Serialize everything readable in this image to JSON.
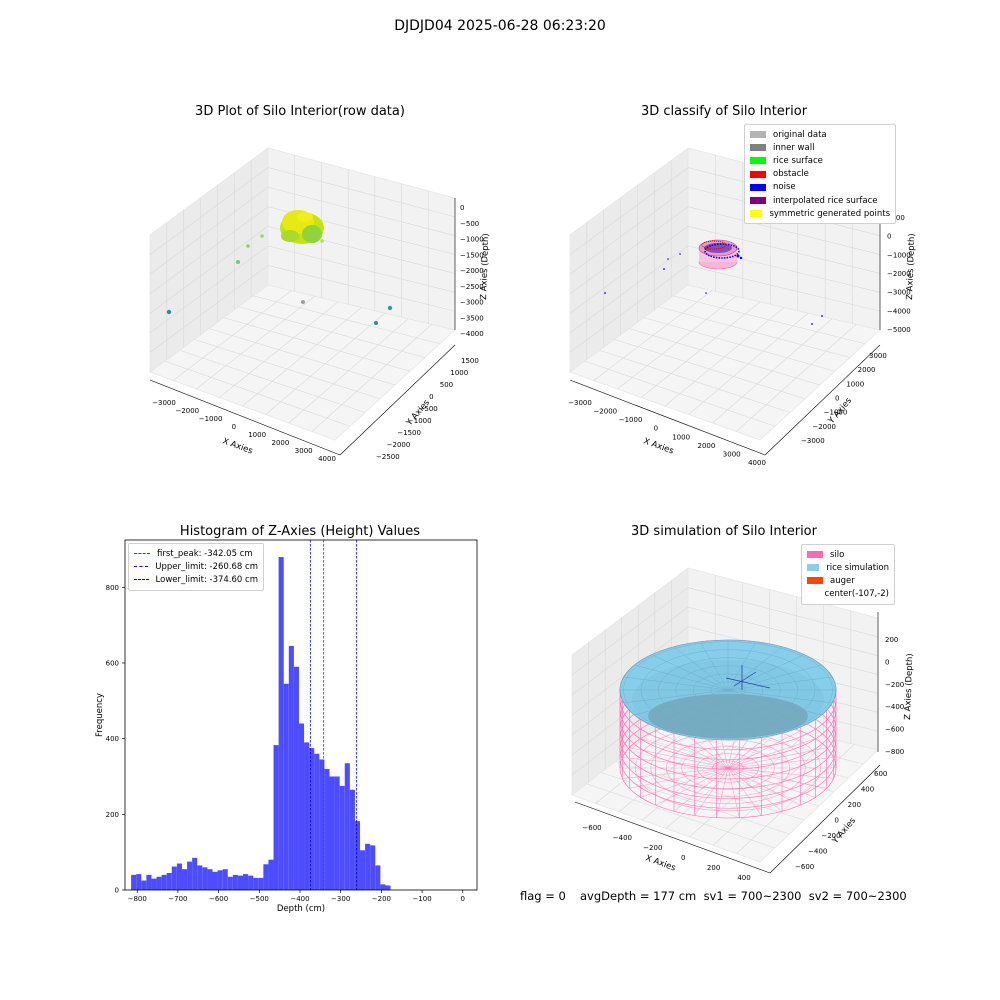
{
  "suptitle": "DJDJD04 2025-06-28 06:23:20",
  "panels": {
    "raw": {
      "title": "3D Plot of Silo Interior(row data)",
      "xlabel": "X Axies",
      "ylabel": "Y Axies",
      "zlabel": "Z Axies (Depth)",
      "xticks": [
        "−3000",
        "−2000",
        "−1000",
        "0",
        "1000",
        "2000",
        "3000",
        "4000"
      ],
      "yticks": [
        "−2500",
        "−2000",
        "−1500",
        "−1000",
        "−500",
        "0",
        "500",
        "1000",
        "1500"
      ],
      "zticks": [
        "0",
        "−500",
        "−1000",
        "−1500",
        "−2000",
        "−2500",
        "−3000",
        "−3500",
        "−4000"
      ]
    },
    "classify": {
      "title": "3D classify of Silo Interior",
      "xlabel": "X Axies",
      "ylabel": "Y Axies",
      "zlabel": "Z Axies (Depth)",
      "xticks": [
        "−3000",
        "−2000",
        "−1000",
        "0",
        "1000",
        "2000",
        "3000",
        "4000"
      ],
      "yticks": [
        "−3000",
        "−2000",
        "−1000",
        "0",
        "1000",
        "2000",
        "3000"
      ],
      "zticks": [
        "1000",
        "0",
        "−1000",
        "−2000",
        "−3000",
        "−4000",
        "−5000"
      ],
      "legend": [
        {
          "label": "original data",
          "color": "#b3b3b3"
        },
        {
          "label": "inner wall",
          "color": "#808080"
        },
        {
          "label": "rice surface",
          "color": "#00ff00"
        },
        {
          "label": "obstacle",
          "color": "#ff0000"
        },
        {
          "label": "noise",
          "color": "#0000ff"
        },
        {
          "label": "interpolated rice surface",
          "color": "#800080"
        },
        {
          "label": "symmetric generated points",
          "color": "#ffff00"
        }
      ]
    },
    "simulation": {
      "title": "3D simulation of Silo Interior",
      "xlabel": "X Axies",
      "ylabel": "Y Axies",
      "zlabel": "Z Axies (Depth)",
      "xticks": [
        "−600",
        "−400",
        "−200",
        "0",
        "200",
        "400"
      ],
      "yticks": [
        "−600",
        "−400",
        "−200",
        "0",
        "200",
        "400",
        "600"
      ],
      "zticks": [
        "200",
        "0",
        "−200",
        "−400",
        "−600",
        "−800"
      ],
      "legend": [
        {
          "label": "silo",
          "color": "#ff69b4"
        },
        {
          "label": "rice simulation",
          "color": "#87ceeb"
        },
        {
          "label": "auger",
          "color": "#ff4500"
        },
        {
          "label": "center(-107,-2)",
          "color": ""
        }
      ]
    }
  },
  "footer": {
    "flag": "flag = 0",
    "avg": "avgDepth = 177 cm  sv1 = 700~2300  sv2 = 700~2300"
  },
  "chart_data": [
    {
      "type": "bar",
      "title": "Histogram of Z-Axies (Height) Values",
      "xlabel": "Depth (cm)",
      "ylabel": "Frequency",
      "xlim": [
        -830,
        35
      ],
      "ylim": [
        0,
        925
      ],
      "bin_width": 12.5,
      "bin_start": -815,
      "values": [
        40,
        42,
        25,
        40,
        30,
        35,
        40,
        45,
        62,
        70,
        55,
        75,
        85,
        65,
        60,
        55,
        48,
        52,
        55,
        35,
        40,
        38,
        42,
        38,
        32,
        32,
        68,
        80,
        383,
        880,
        545,
        645,
        590,
        440,
        390,
        375,
        360,
        345,
        320,
        300,
        300,
        275,
        335,
        265,
        182,
        105,
        122,
        118,
        65,
        15,
        12
      ],
      "xticks": [
        -800,
        -700,
        -600,
        -500,
        -400,
        -300,
        -200,
        -100,
        0
      ],
      "yticks": [
        0,
        200,
        400,
        600,
        800
      ],
      "lines": [
        {
          "label": "first_peak: -342.05 cm",
          "x": -342.05,
          "color": "#ff0000"
        },
        {
          "label": "Upper_limit: -260.68 cm",
          "x": -260.68,
          "color": "#0000cc"
        },
        {
          "label": "Lower_limit: -374.60 cm",
          "x": -374.6,
          "color": "#0000cc"
        }
      ],
      "bar_color": "#4d4dff"
    }
  ]
}
